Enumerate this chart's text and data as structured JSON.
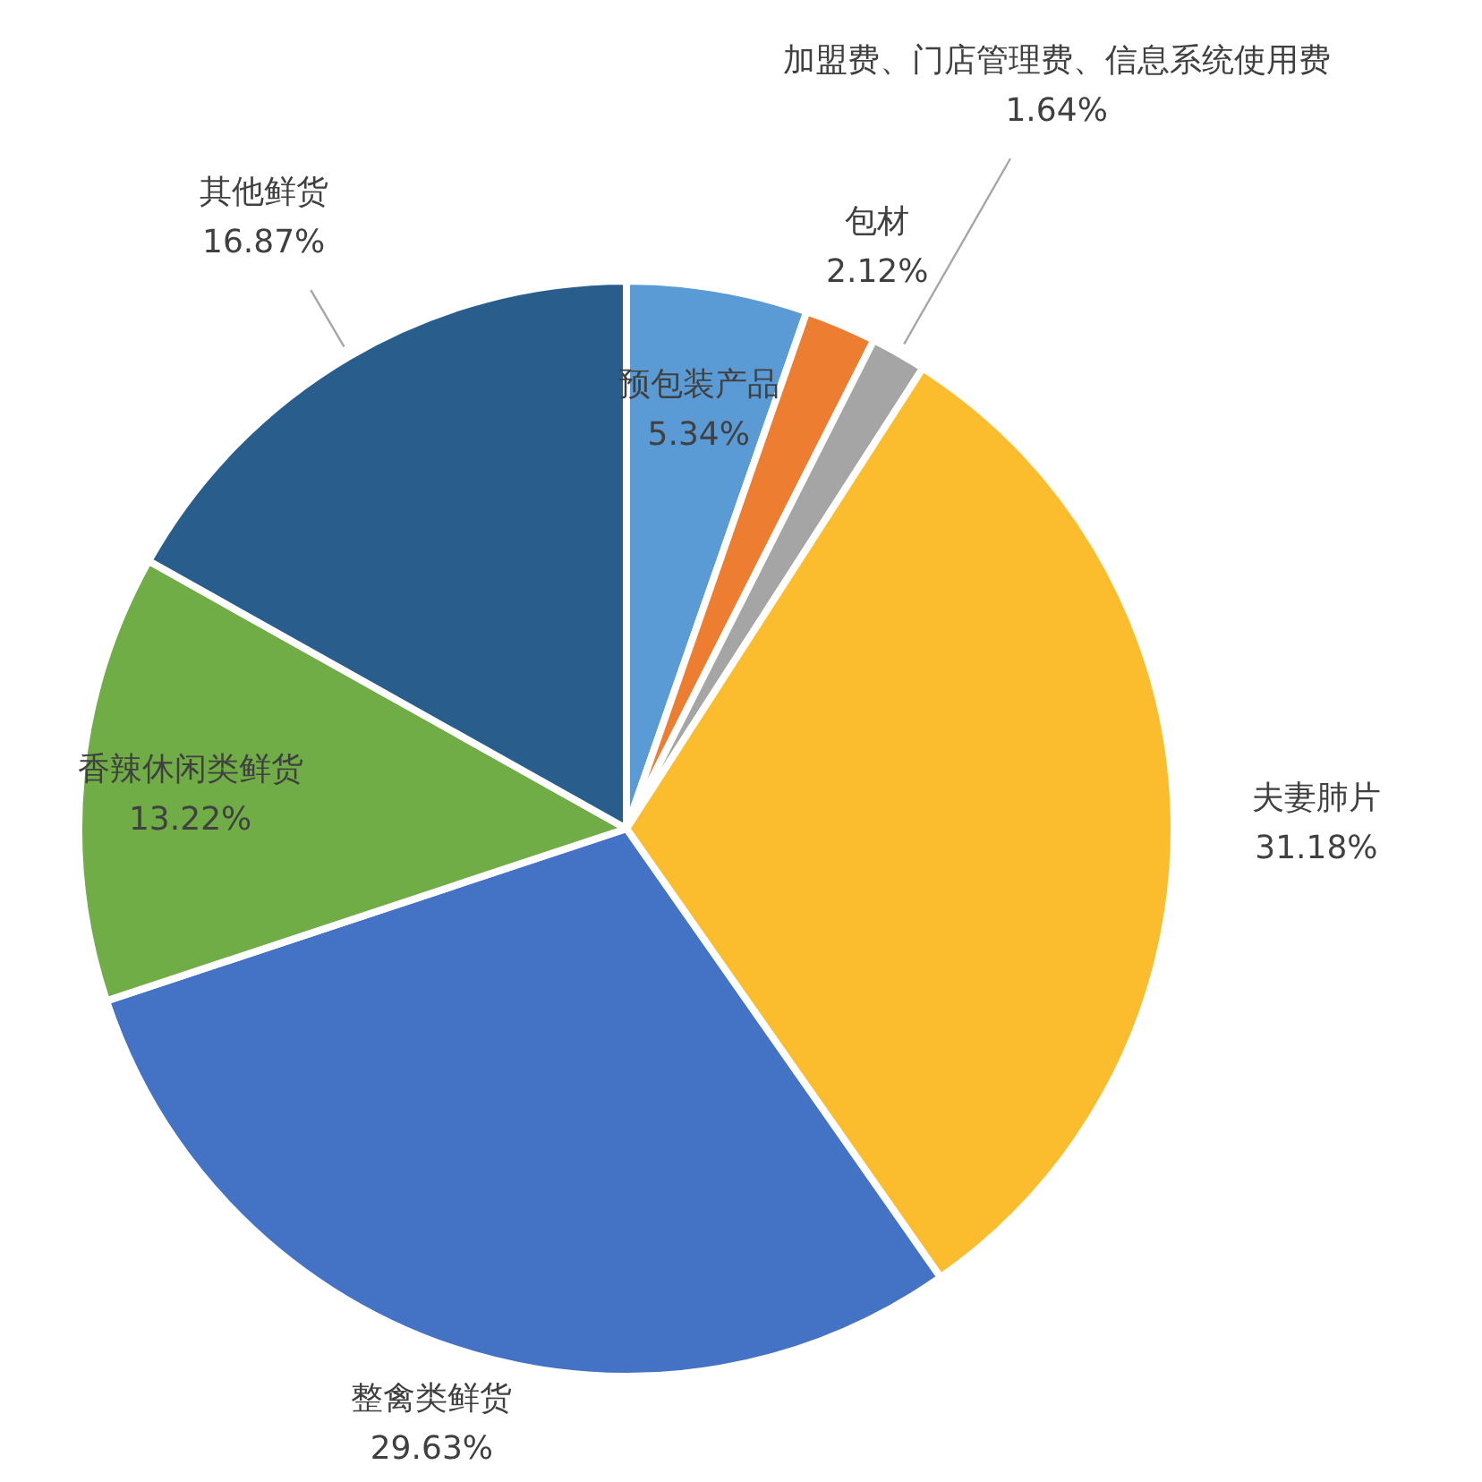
{
  "chart_data": {
    "type": "pie",
    "categories": [
      "预包装产品",
      "包材",
      "加盟费、门店管理费、信息系统使用费",
      "夫妻肺片",
      "整禽类鲜货",
      "香辣休闲类鲜货",
      "其他鲜货"
    ],
    "values": [
      5.34,
      2.12,
      1.64,
      31.18,
      29.63,
      13.22,
      16.87
    ],
    "colors": [
      "#5b9bd5",
      "#ed7d31",
      "#a5a5a5",
      "#fbbd2e",
      "#4472c4",
      "#70ad47",
      "#295d8c"
    ],
    "value_labels": [
      "5.34%",
      "2.12%",
      "1.64%",
      "31.18%",
      "29.63%",
      "13.22%",
      "16.87%"
    ]
  }
}
